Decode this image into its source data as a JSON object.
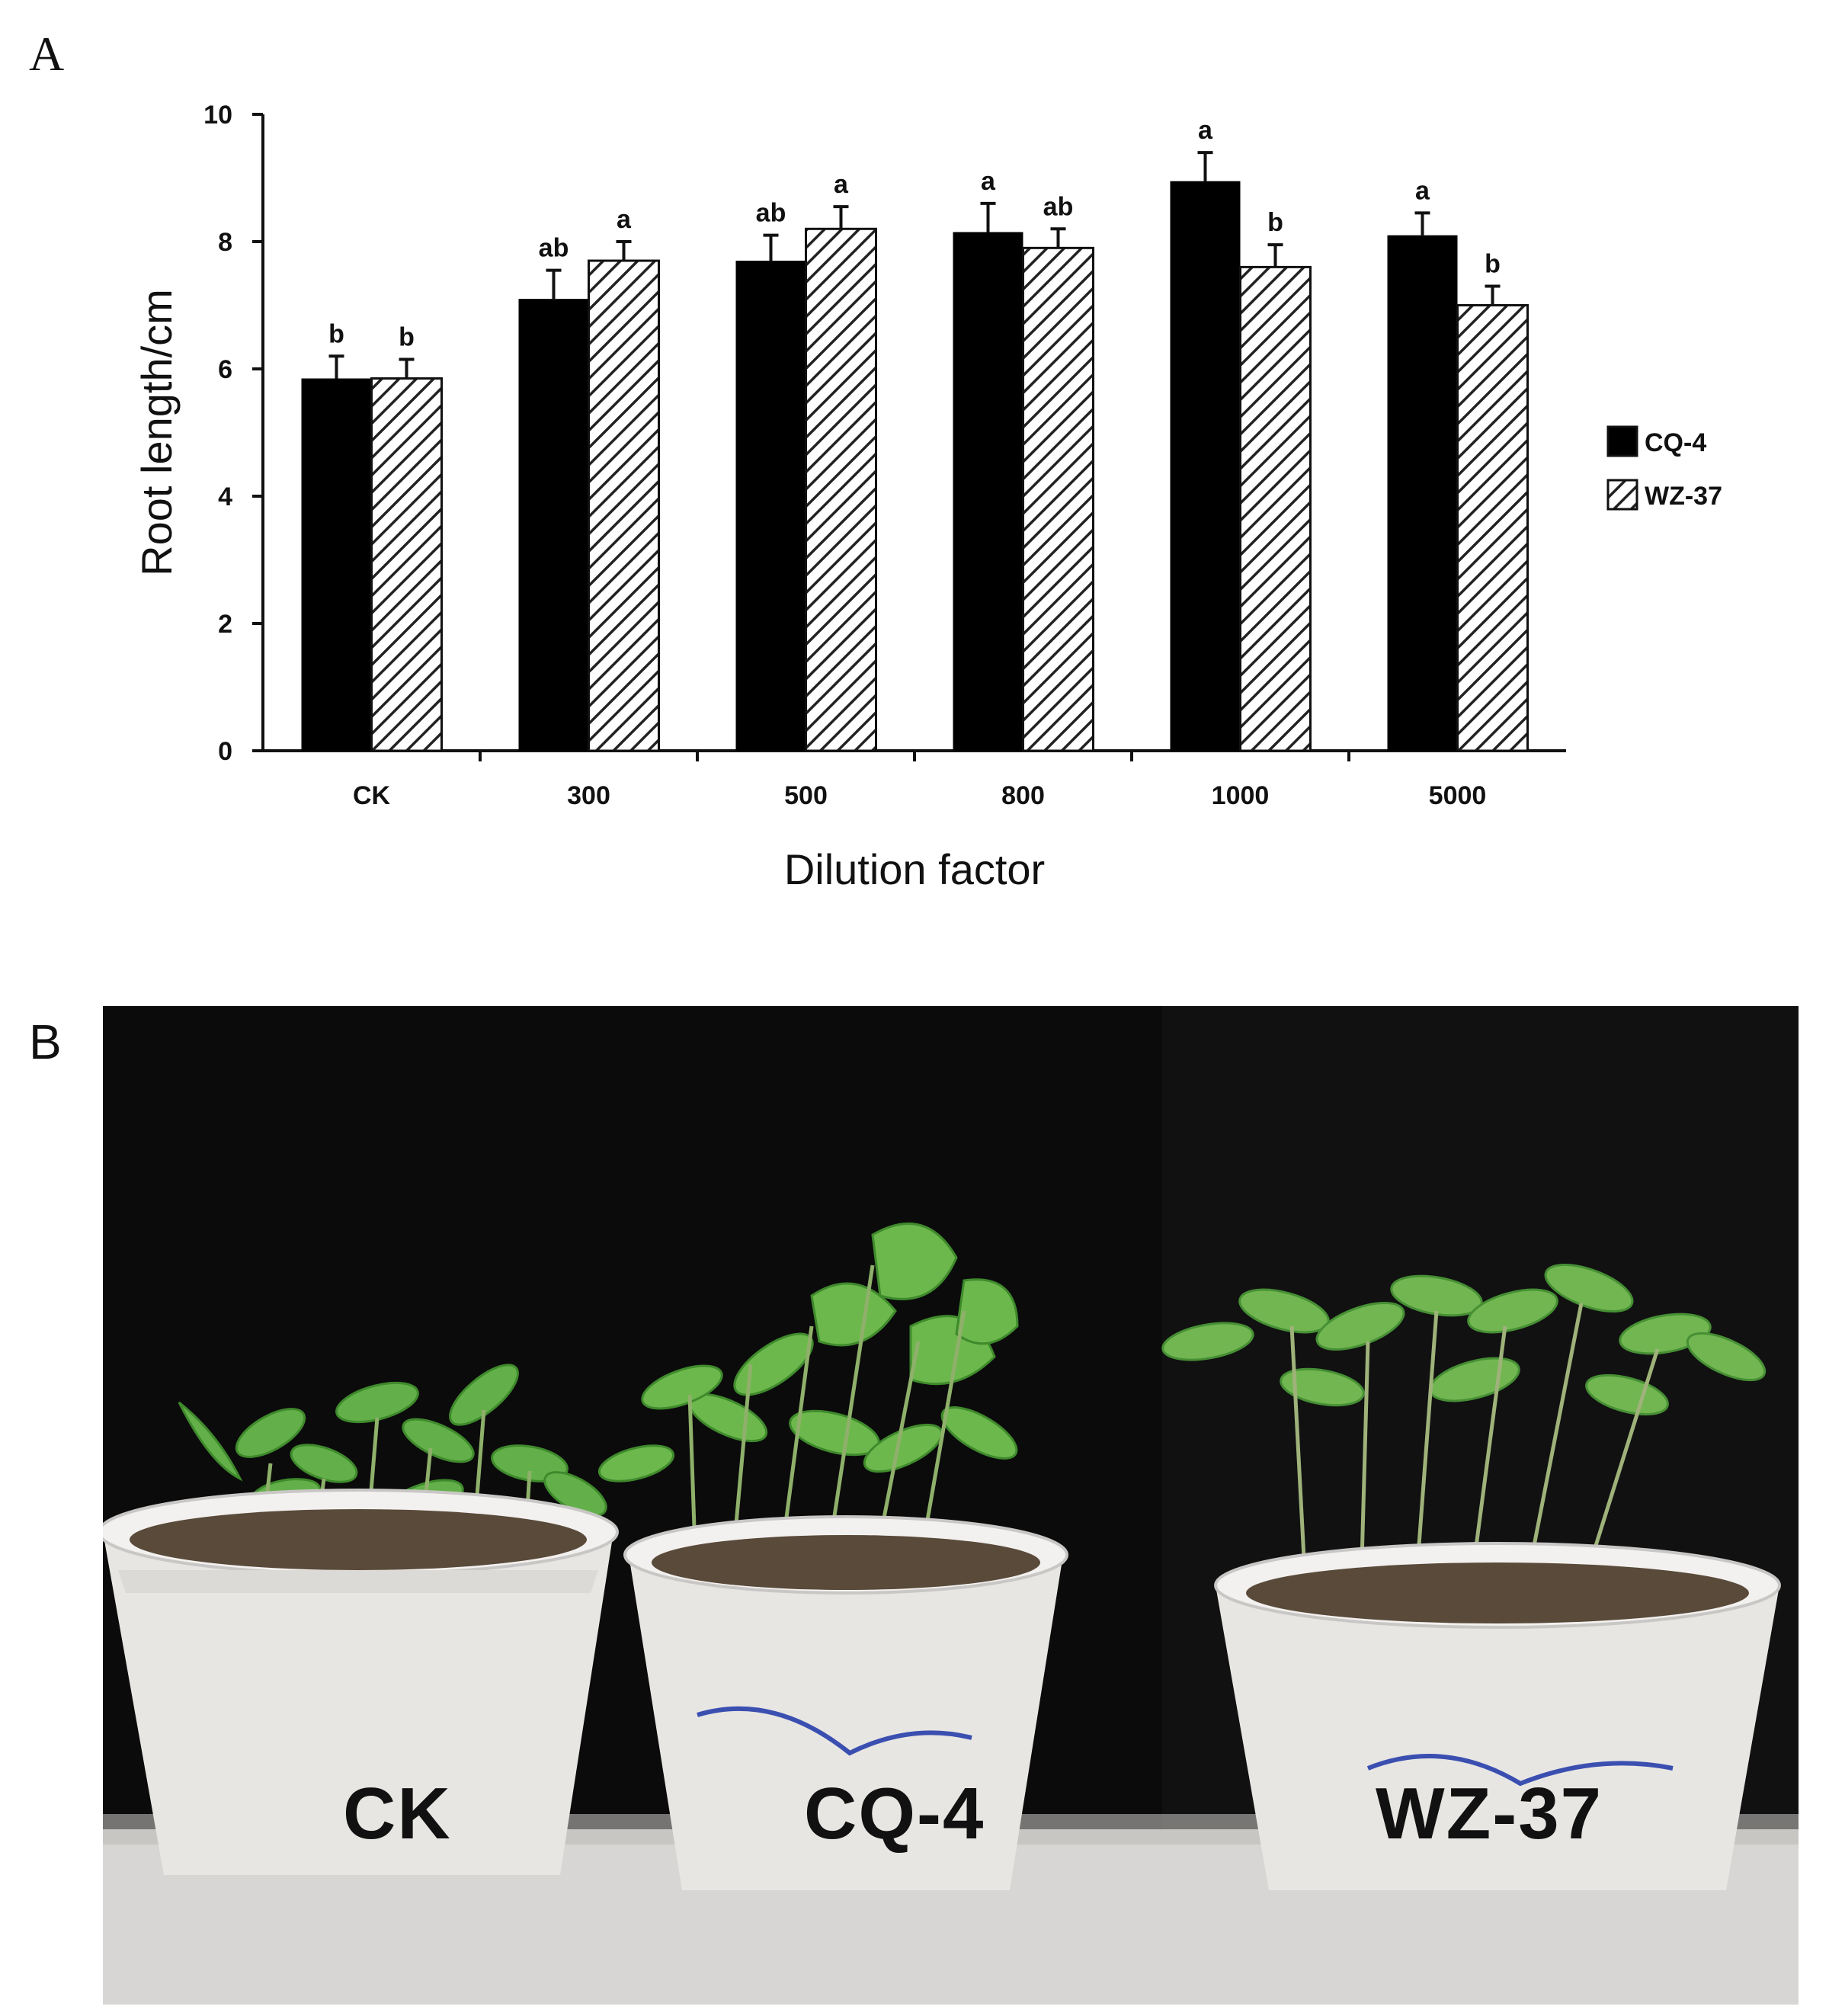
{
  "panels": {
    "a_label": "A",
    "b_label": "B"
  },
  "chart_data": {
    "type": "bar",
    "xlabel": "Dilution factor",
    "ylabel": "Root length/cm",
    "ylim": [
      0,
      10
    ],
    "yticks": [
      0,
      2,
      4,
      6,
      8,
      10
    ],
    "grid": false,
    "legend_position": "right",
    "categories": [
      "CK",
      "300",
      "500",
      "800",
      "1000",
      "5000"
    ],
    "series": [
      {
        "name": "CQ-4",
        "fill": "solid-black",
        "values": [
          5.85,
          7.1,
          7.7,
          8.15,
          8.95,
          8.1
        ],
        "errors": [
          0.35,
          0.45,
          0.4,
          0.45,
          0.45,
          0.35
        ],
        "significance": [
          "b",
          "ab",
          "ab",
          "a",
          "a",
          "a"
        ]
      },
      {
        "name": "WZ-37",
        "fill": "diagonal-hatch",
        "values": [
          5.85,
          7.7,
          8.2,
          7.9,
          7.6,
          7.0
        ],
        "errors": [
          0.3,
          0.3,
          0.35,
          0.3,
          0.35,
          0.3
        ],
        "significance": [
          "b",
          "a",
          "a",
          "ab",
          "b",
          "b"
        ]
      }
    ]
  },
  "photo": {
    "description_labels": [
      "CK",
      "CQ-4",
      "WZ-37"
    ],
    "background_color": "#0b0b0b"
  },
  "colors": {
    "bar_solid": "#000000",
    "hatch": "#222222",
    "axis": "#111111"
  }
}
